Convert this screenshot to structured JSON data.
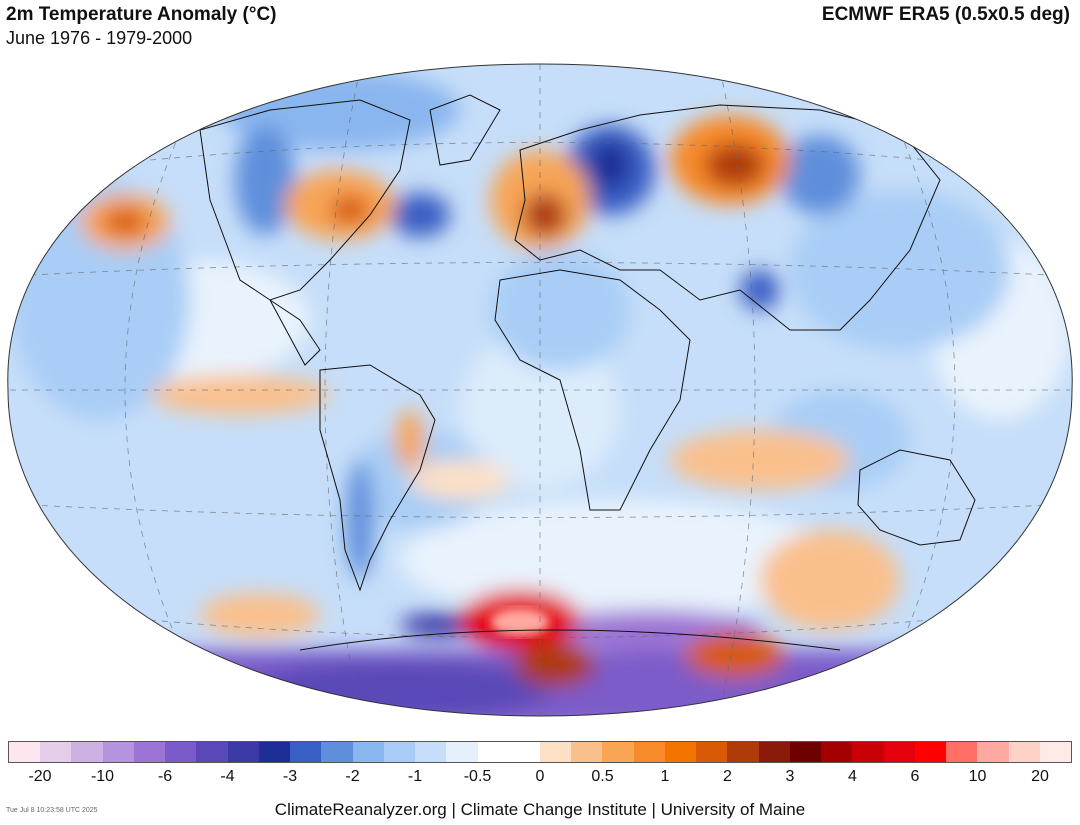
{
  "header": {
    "title": "2m Temperature Anomaly (°C)",
    "subtitle": "June 1976 - 1979-2000",
    "source": "ECMWF ERA5 (0.5x0.5 deg)"
  },
  "legend": {
    "colors": [
      "#fde6ef",
      "#e4cde9",
      "#cdb1e3",
      "#b593de",
      "#9d73d5",
      "#7b5bc9",
      "#5a48b8",
      "#3a39a6",
      "#1d2e96",
      "#3a5fc4",
      "#5f8fdc",
      "#8ab6ef",
      "#a9cdf6",
      "#c6def9",
      "#e5f0fc",
      "#ffffff",
      "#ffffff",
      "#fde0c6",
      "#fac08c",
      "#f8a556",
      "#f78a2a",
      "#f47400",
      "#d85a06",
      "#ae3b08",
      "#8a1a0a",
      "#6e0000",
      "#a50000",
      "#c80008",
      "#e5000c",
      "#ff0000",
      "#ff6f66",
      "#ffa9a1",
      "#ffd2c7",
      "#ffeae7"
    ],
    "ticks": [
      "-20",
      "-10",
      "-6",
      "-4",
      "-3",
      "-2",
      "-1",
      "-0.5",
      "0",
      "0.5",
      "1",
      "2",
      "3",
      "4",
      "6",
      "10",
      "20"
    ]
  },
  "map": {
    "projection": "Winkel Tripel / Robinson-like",
    "regions": [
      {
        "name": "Western Europe warm anomaly",
        "lon": 5,
        "lat": 50,
        "anomaly": 3
      },
      {
        "name": "Western Siberia warm anomaly",
        "lon": 75,
        "lat": 60,
        "anomaly": 2
      },
      {
        "name": "NE Pacific warm anomaly",
        "lon": -160,
        "lat": 40,
        "anomaly": 2
      },
      {
        "name": "Eastern North America warm anomaly",
        "lon": -80,
        "lat": 48,
        "anomaly": 1
      },
      {
        "name": "Western Russia cold anomaly",
        "lon": 40,
        "lat": 60,
        "anomaly": -3
      },
      {
        "name": "NW North America cold anomaly",
        "lon": -125,
        "lat": 55,
        "anomaly": -3
      },
      {
        "name": "Eastern Siberia cold anomaly",
        "lon": 110,
        "lat": 62,
        "anomaly": -2
      },
      {
        "name": "Weddell Sea warm anomaly",
        "lon": -20,
        "lat": -68,
        "anomaly": 10
      },
      {
        "name": "East Antarctica warm anomaly",
        "lon": 20,
        "lat": -78,
        "anomaly": 3
      },
      {
        "name": "Wilkes Land warm anomaly",
        "lon": 130,
        "lat": -75,
        "anomaly": 2
      },
      {
        "name": "Antarctic cold anomaly",
        "lon": -90,
        "lat": -80,
        "anomaly": -6
      },
      {
        "name": "Southern Indian Ocean warm anomaly",
        "lon": 80,
        "lat": -35,
        "anomaly": 1
      },
      {
        "name": "Tasman Sea warm anomaly",
        "lon": 160,
        "lat": -45,
        "anomaly": 1
      }
    ]
  },
  "footer": {
    "credit": "ClimateReanalyzer.org | Climate Change Institute | University of Maine",
    "timestamp": "Tue Jul  8 10:23:58 UTC 2025"
  }
}
